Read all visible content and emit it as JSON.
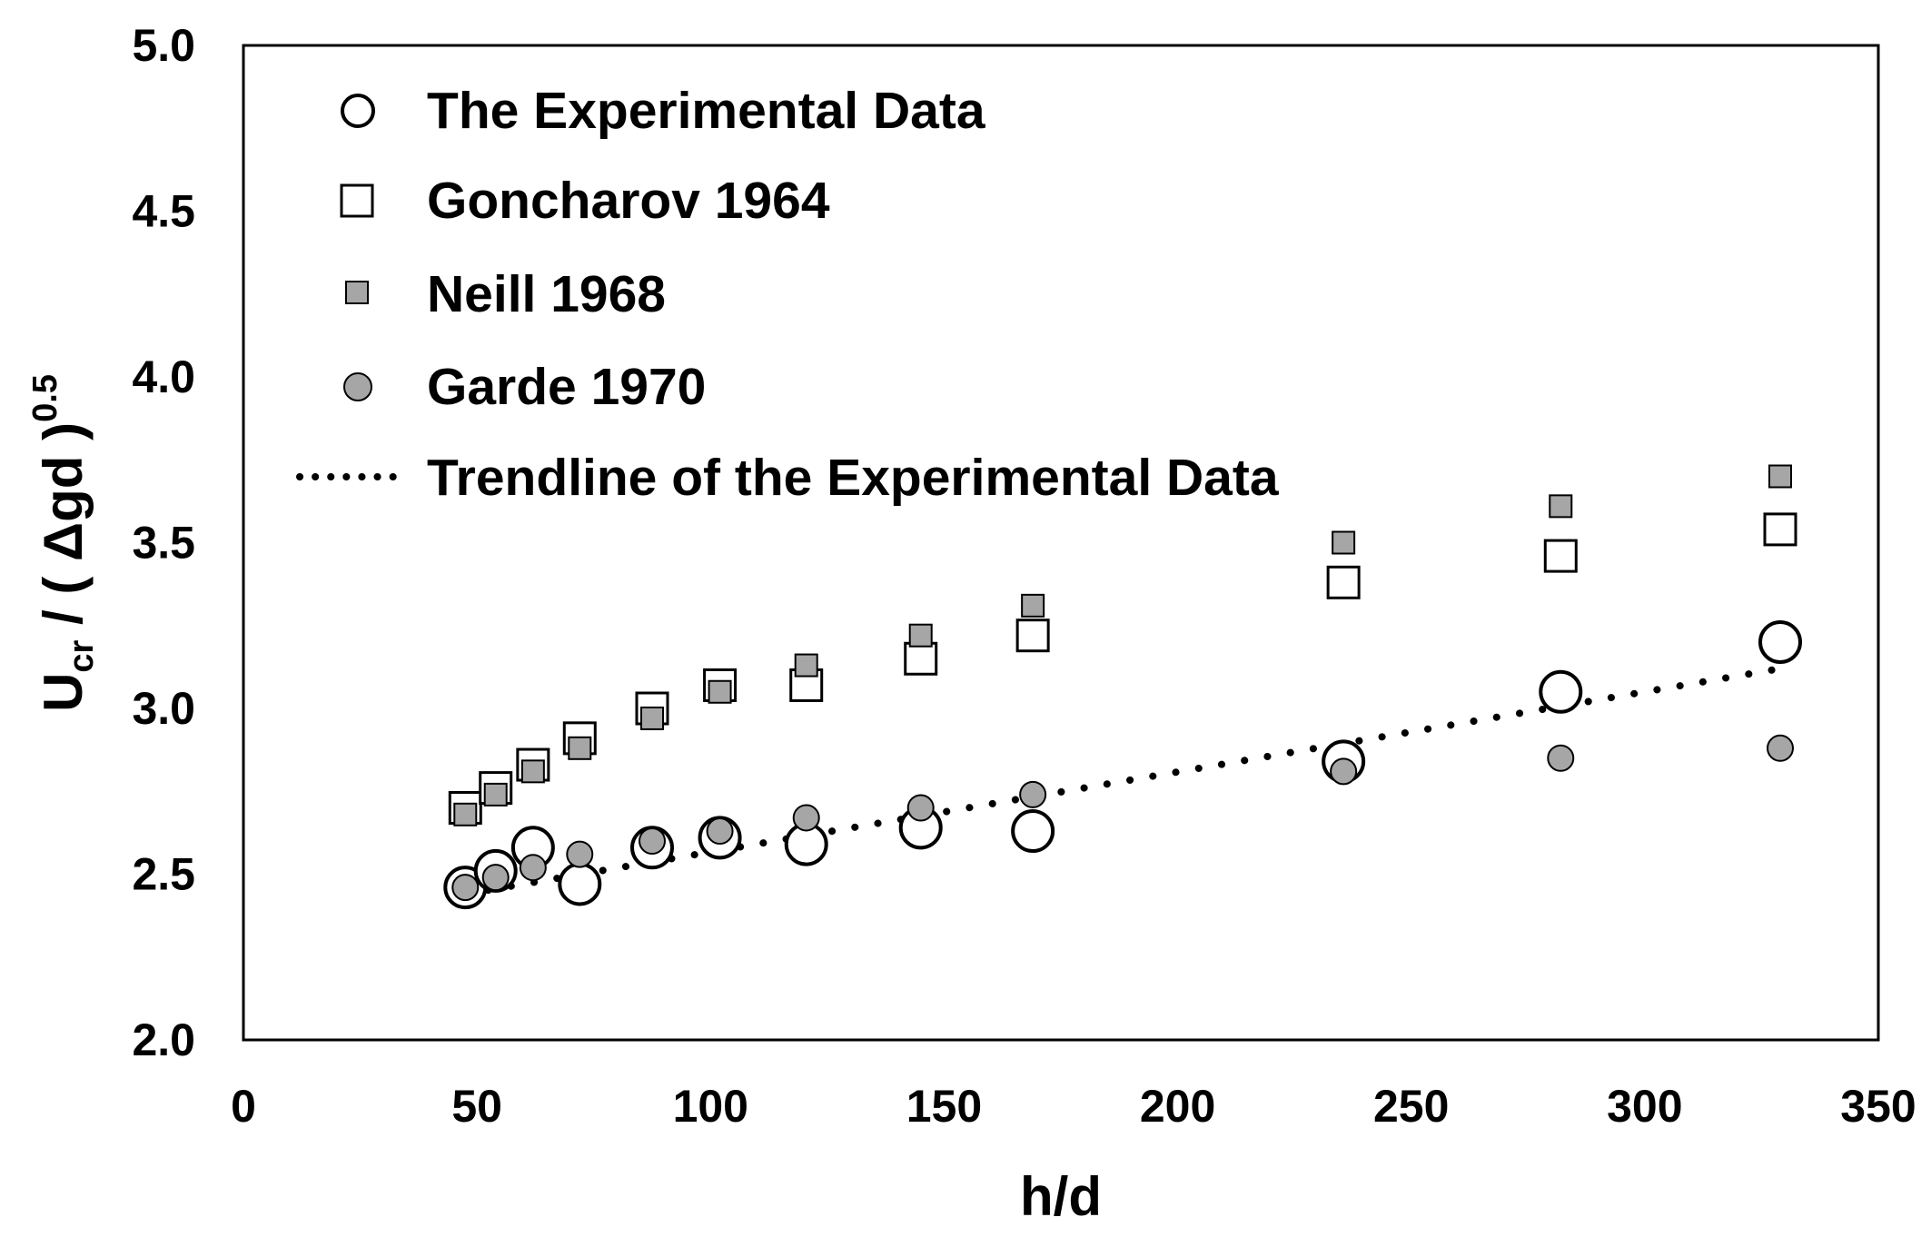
{
  "chart_data": {
    "type": "scatter",
    "xlabel": "h/d",
    "ylabel": {
      "main": "U",
      "sub": "cr",
      "mid": " / ( Δgd )",
      "sup": "0.5"
    },
    "xlim": [
      0,
      350
    ],
    "ylim": [
      2.0,
      5.0
    ],
    "xticks": [
      "0",
      "50",
      "100",
      "150",
      "200",
      "250",
      "300",
      "350"
    ],
    "yticks": [
      "2.0",
      "2.5",
      "3.0",
      "3.5",
      "4.0",
      "4.5",
      "5.0"
    ],
    "legend_position": "top-left",
    "series": [
      {
        "name": "The Experimental Data",
        "marker": "circle-open",
        "points": [
          [
            47.5,
            2.46
          ],
          [
            54,
            2.51
          ],
          [
            62,
            2.58
          ],
          [
            72,
            2.47
          ],
          [
            87.5,
            2.58
          ],
          [
            102,
            2.61
          ],
          [
            120.5,
            2.59
          ],
          [
            145,
            2.64
          ],
          [
            169,
            2.63
          ],
          [
            235.5,
            2.84
          ],
          [
            282,
            3.05
          ],
          [
            329,
            3.2
          ]
        ]
      },
      {
        "name": "Goncharov 1964",
        "marker": "square-open",
        "points": [
          [
            47.5,
            2.7
          ],
          [
            54,
            2.76
          ],
          [
            62,
            2.83
          ],
          [
            72,
            2.91
          ],
          [
            87.5,
            3.0
          ],
          [
            102,
            3.07
          ],
          [
            120.5,
            3.07
          ],
          [
            145,
            3.15
          ],
          [
            169,
            3.22
          ],
          [
            235.5,
            3.38
          ],
          [
            282,
            3.46
          ],
          [
            329,
            3.54
          ]
        ]
      },
      {
        "name": "Neill 1968",
        "marker": "square-filled",
        "points": [
          [
            47.5,
            2.68
          ],
          [
            54,
            2.74
          ],
          [
            62,
            2.81
          ],
          [
            72,
            2.88
          ],
          [
            87.5,
            2.97
          ],
          [
            102,
            3.05
          ],
          [
            120.5,
            3.13
          ],
          [
            145,
            3.22
          ],
          [
            169,
            3.31
          ],
          [
            235.5,
            3.5
          ],
          [
            282,
            3.61
          ],
          [
            329,
            3.7
          ]
        ]
      },
      {
        "name": "Garde 1970",
        "marker": "circle-filled",
        "points": [
          [
            47.5,
            2.46
          ],
          [
            54,
            2.49
          ],
          [
            62,
            2.52
          ],
          [
            72,
            2.56
          ],
          [
            87.5,
            2.6
          ],
          [
            102,
            2.63
          ],
          [
            120.5,
            2.67
          ],
          [
            145,
            2.7
          ],
          [
            169,
            2.74
          ],
          [
            235.5,
            2.81
          ],
          [
            282,
            2.85
          ],
          [
            329,
            2.88
          ]
        ]
      },
      {
        "name": "Trendline of the Experimental Data",
        "marker": "dotted-line",
        "points": [
          [
            47.5,
            2.44
          ],
          [
            329,
            3.12
          ]
        ]
      }
    ]
  },
  "colors": {
    "marker_fill": "#a6a6a6",
    "marker_stroke": "#000000",
    "open_fill": "#ffffff"
  }
}
